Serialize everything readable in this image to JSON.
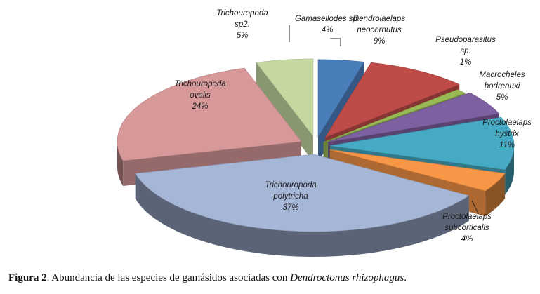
{
  "chart_data": {
    "type": "pie",
    "style": "3d-exploded",
    "slices": [
      {
        "name": "Gamasellodes sp.",
        "lines": [
          "Gamasellodes sp.",
          "4%"
        ],
        "value": 4,
        "color": "#4a7ebb"
      },
      {
        "name": "Dendrolaelaps neocornutus",
        "lines": [
          "Dendrolaelaps",
          "neocornutus",
          "9%"
        ],
        "value": 9,
        "color": "#be4b48"
      },
      {
        "name": "Pseudoparasitus sp.",
        "lines": [
          "Pseudoparasitus",
          "sp.",
          "1%"
        ],
        "value": 1,
        "color": "#98b954"
      },
      {
        "name": "Macrocheles bodreauxi",
        "lines": [
          "Macrocheles",
          "bodreauxi",
          "5%"
        ],
        "value": 5,
        "color": "#7d60a0"
      },
      {
        "name": "Proctolaelaps hystrix",
        "lines": [
          "Proctolaelaps",
          "hystrix",
          "11%"
        ],
        "value": 11,
        "color": "#46aac5"
      },
      {
        "name": "Proctolaelaps subcorticalis",
        "lines": [
          "Proctolaelaps",
          "subcorticalis",
          "4%"
        ],
        "value": 4,
        "color": "#f79646"
      },
      {
        "name": "Trichouropoda polytricha",
        "lines": [
          "Trichouropoda",
          "polytricha",
          "37%"
        ],
        "value": 37,
        "color": "#a5b6d6"
      },
      {
        "name": "Trichouropoda ovalis",
        "lines": [
          "Trichouropoda",
          "ovalis",
          "24%"
        ],
        "value": 24,
        "color": "#d69898"
      },
      {
        "name": "Trichouropoda sp2.",
        "lines": [
          "Trichouropoda",
          "sp2.",
          "5%"
        ],
        "value": 5,
        "color": "#c4d8a0"
      }
    ]
  },
  "caption": {
    "label": "Figura 2",
    "text": ". Abundancia de las especies de gamásidos asociadas con ",
    "species": "Dendroctonus rhizophagus",
    "end": "."
  }
}
